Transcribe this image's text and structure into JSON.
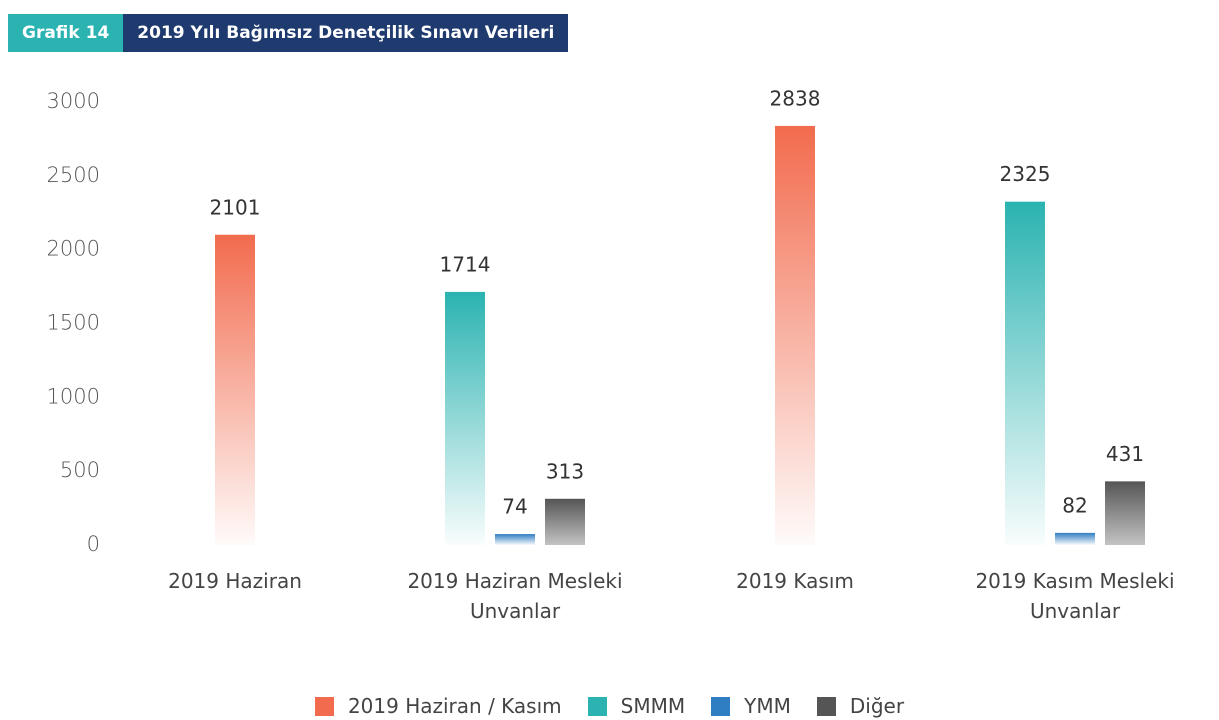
{
  "chart_data": {
    "type": "bar",
    "badge": "Grafik 14",
    "title": "2019 Yılı Bağımsız Denetçilik Sınavı Verileri",
    "categories": [
      "2019 Haziran",
      "2019 Haziran Mesleki Unvanlar",
      "2019 Kasım",
      "2019 Kasım Mesleki Unvanlar"
    ],
    "series": [
      {
        "name": "2019 Haziran / Kasım",
        "color": "#f26b4e",
        "values": [
          2101,
          null,
          2838,
          null
        ]
      },
      {
        "name": "SMMM",
        "color": "#2ab3b1",
        "values": [
          null,
          1714,
          null,
          2325
        ]
      },
      {
        "name": "YMM",
        "color": "#2f7dc2",
        "values": [
          null,
          74,
          null,
          82
        ]
      },
      {
        "name": "Diğer",
        "color": "#555555",
        "values": [
          null,
          313,
          null,
          431
        ]
      }
    ],
    "ylim": [
      0,
      3000
    ],
    "yticks": [
      0,
      500,
      1000,
      1500,
      2000,
      2500,
      3000
    ],
    "grid": false,
    "legend": "bottom"
  }
}
